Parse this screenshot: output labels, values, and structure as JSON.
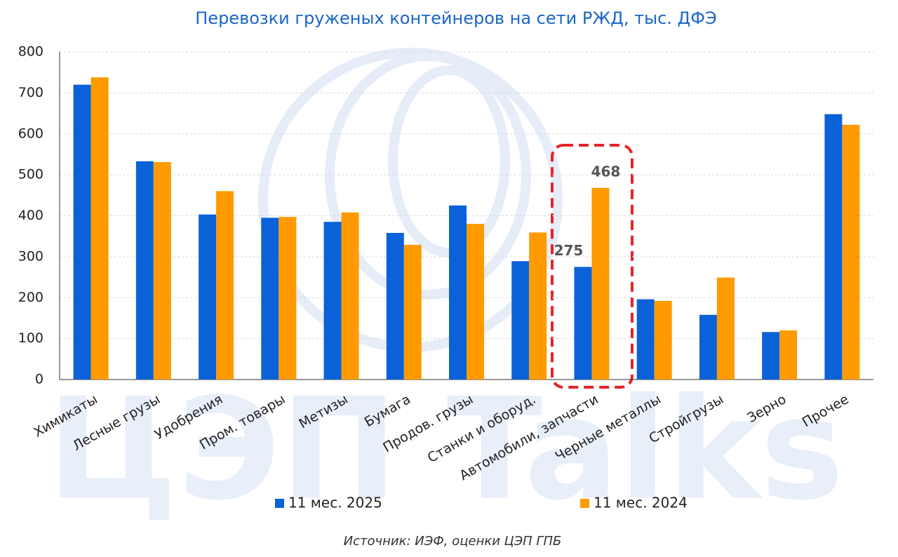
{
  "chart_data": {
    "type": "bar",
    "title": "Перевозки груженых контейнеров на сети РЖД, тыс. ДФЭ",
    "watermark": "ЦЭП Talks",
    "source": "Источник: ИЭФ, оценки ЦЭП ГПБ",
    "categories": [
      "Химикаты",
      "Лесные грузы",
      "Удобрения",
      "Пром. товары",
      "Метизы",
      "Бумага",
      "Продов. грузы",
      "Станки и оборуд.",
      "Автомобили, запчасти",
      "Черные металлы",
      "Стройгрузы",
      "Зерно",
      "Прочее"
    ],
    "series": [
      {
        "name": "11 мес. 2025",
        "color": "#0b62d8",
        "values": [
          720,
          533,
          403,
          395,
          385,
          358,
          425,
          289,
          275,
          196,
          158,
          116,
          648
        ],
        "value_labels": [
          null,
          null,
          null,
          null,
          null,
          null,
          null,
          null,
          "275",
          null,
          null,
          null,
          null
        ]
      },
      {
        "name": "11 мес. 2024",
        "color": "#ff9a00",
        "values": [
          738,
          531,
          460,
          397,
          408,
          329,
          380,
          359,
          468,
          192,
          249,
          120,
          622
        ],
        "value_labels": [
          null,
          null,
          null,
          null,
          null,
          null,
          null,
          null,
          "468",
          null,
          null,
          null,
          null
        ]
      }
    ],
    "ylim": [
      0,
      800
    ],
    "yticks": [
      0,
      100,
      200,
      300,
      400,
      500,
      600,
      700,
      800
    ],
    "grid": true,
    "legend": "bottom"
  }
}
